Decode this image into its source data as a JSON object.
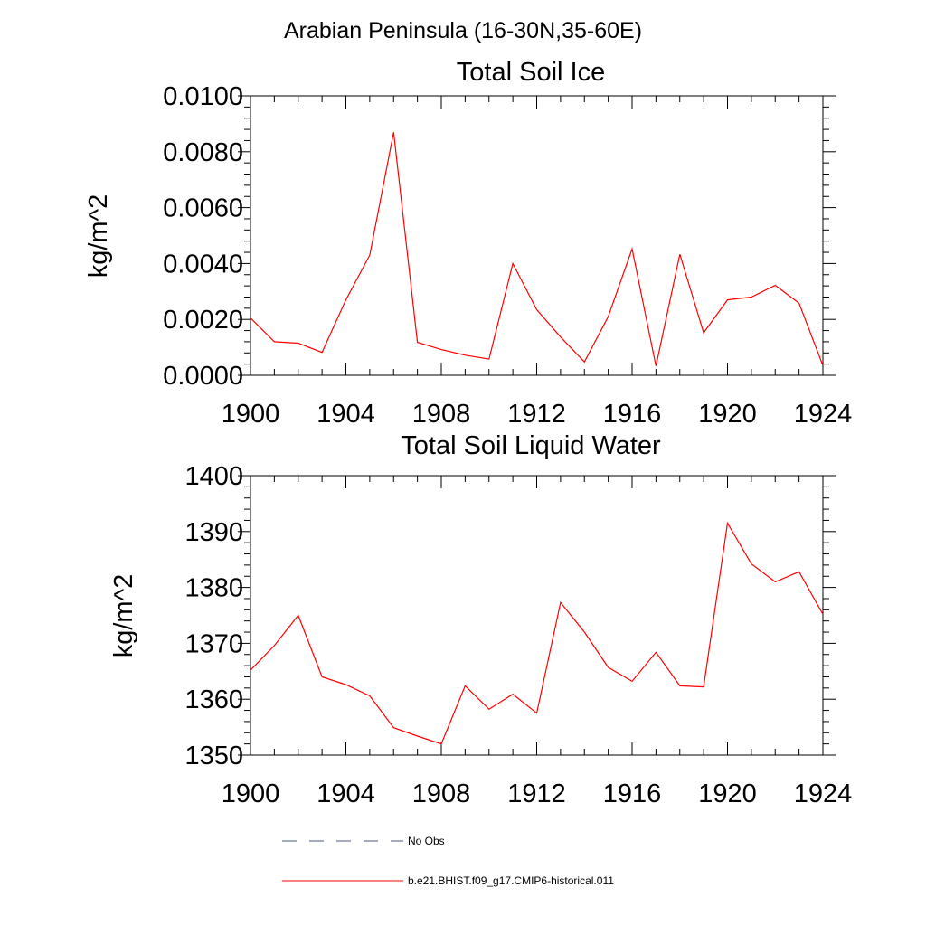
{
  "figure_title": "Arabian Peninsula (16-30N,35-60E)",
  "chart_data": [
    {
      "type": "line",
      "title": "Total Soil Ice",
      "xlabel": "",
      "ylabel": "kg/m^2",
      "xlim": [
        1900,
        1924
      ],
      "ylim": [
        0.0,
        0.01
      ],
      "xticks": [
        1900,
        1904,
        1908,
        1912,
        1916,
        1920,
        1924
      ],
      "xtick_labels": [
        "1900",
        "1904",
        "1908",
        "1912",
        "1916",
        "1920",
        "1924"
      ],
      "yticks": [
        0.0,
        0.002,
        0.004,
        0.006,
        0.008,
        0.01
      ],
      "ytick_labels": [
        "0.0000",
        "0.0020",
        "0.0040",
        "0.0060",
        "0.0080",
        "0.0100"
      ],
      "series": [
        {
          "name": "b.e21.BHIST.f09_g17.CMIP6-historical.011",
          "color": "#ff0000",
          "x": [
            1900,
            1901,
            1902,
            1903,
            1904,
            1905,
            1906,
            1907,
            1908,
            1909,
            1910,
            1911,
            1912,
            1913,
            1914,
            1915,
            1916,
            1917,
            1918,
            1919,
            1920,
            1921,
            1922,
            1923,
            1924
          ],
          "y": [
            0.00205,
            0.0012,
            0.00115,
            0.00082,
            0.0027,
            0.0043,
            0.0087,
            0.00118,
            0.00092,
            0.00072,
            0.00058,
            0.004,
            0.00235,
            0.00137,
            0.00048,
            0.0021,
            0.00452,
            0.00033,
            0.00433,
            0.00152,
            0.0027,
            0.0028,
            0.00322,
            0.00258,
            0.00035
          ]
        }
      ]
    },
    {
      "type": "line",
      "title": "Total Soil Liquid Water",
      "xlabel": "",
      "ylabel": "kg/m^2",
      "xlim": [
        1900,
        1924
      ],
      "ylim": [
        1350,
        1400
      ],
      "xticks": [
        1900,
        1904,
        1908,
        1912,
        1916,
        1920,
        1924
      ],
      "xtick_labels": [
        "1900",
        "1904",
        "1908",
        "1912",
        "1916",
        "1920",
        "1924"
      ],
      "yticks": [
        1350,
        1360,
        1370,
        1380,
        1390,
        1400
      ],
      "ytick_labels": [
        "1350",
        "1360",
        "1370",
        "1380",
        "1390",
        "1400"
      ],
      "series": [
        {
          "name": "b.e21.BHIST.f09_g17.CMIP6-historical.011",
          "color": "#ff0000",
          "x": [
            1900,
            1901,
            1902,
            1903,
            1904,
            1905,
            1906,
            1907,
            1908,
            1909,
            1910,
            1911,
            1912,
            1913,
            1914,
            1915,
            1916,
            1917,
            1918,
            1919,
            1920,
            1921,
            1922,
            1923,
            1924
          ],
          "y": [
            1365.2,
            1369.6,
            1375.0,
            1364.0,
            1362.6,
            1360.6,
            1354.9,
            1353.4,
            1352.0,
            1362.4,
            1358.2,
            1360.9,
            1357.5,
            1377.3,
            1372.0,
            1365.7,
            1363.2,
            1368.4,
            1362.4,
            1362.2,
            1391.5,
            1384.2,
            1381.0,
            1382.8,
            1375.2
          ]
        }
      ]
    }
  ],
  "legend": [
    {
      "label": "No Obs",
      "style": "dashed",
      "color": "#4a5a8a"
    },
    {
      "label": "b.e21.BHIST.f09_g17.CMIP6-historical.011",
      "style": "solid",
      "color": "#ff0000"
    }
  ]
}
